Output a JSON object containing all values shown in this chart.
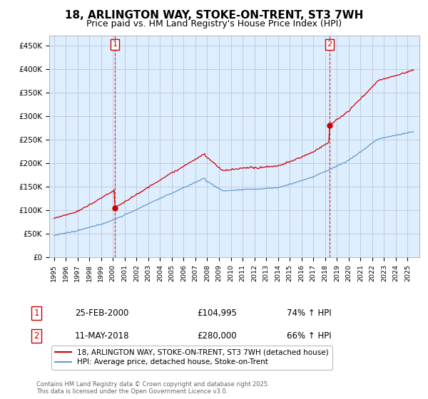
{
  "title": "18, ARLINGTON WAY, STOKE-ON-TRENT, ST3 7WH",
  "subtitle": "Price paid vs. HM Land Registry's House Price Index (HPI)",
  "title_fontsize": 11,
  "subtitle_fontsize": 9,
  "ylabel_ticks": [
    "£0",
    "£50K",
    "£100K",
    "£150K",
    "£200K",
    "£250K",
    "£300K",
    "£350K",
    "£400K",
    "£450K"
  ],
  "ytick_vals": [
    0,
    50000,
    100000,
    150000,
    200000,
    250000,
    300000,
    350000,
    400000,
    450000
  ],
  "ylim": [
    0,
    470000
  ],
  "sale1_x": 2000.17,
  "sale1_price": 104995,
  "sale2_x": 2018.37,
  "sale2_price": 280000,
  "sale1_date": "25-FEB-2000",
  "sale2_date": "11-MAY-2018",
  "sale1_pct": "74% ↑ HPI",
  "sale2_pct": "66% ↑ HPI",
  "legend_line1": "18, ARLINGTON WAY, STOKE-ON-TRENT, ST3 7WH (detached house)",
  "legend_line2": "HPI: Average price, detached house, Stoke-on-Trent",
  "property_line_color": "#cc0000",
  "hpi_line_color": "#6699cc",
  "vline_color": "#cc0000",
  "plot_bg_color": "#ddeeff",
  "footer": "Contains HM Land Registry data © Crown copyright and database right 2025.\nThis data is licensed under the Open Government Licence v3.0.",
  "background_color": "#ffffff",
  "grid_color": "#bbbbcc"
}
